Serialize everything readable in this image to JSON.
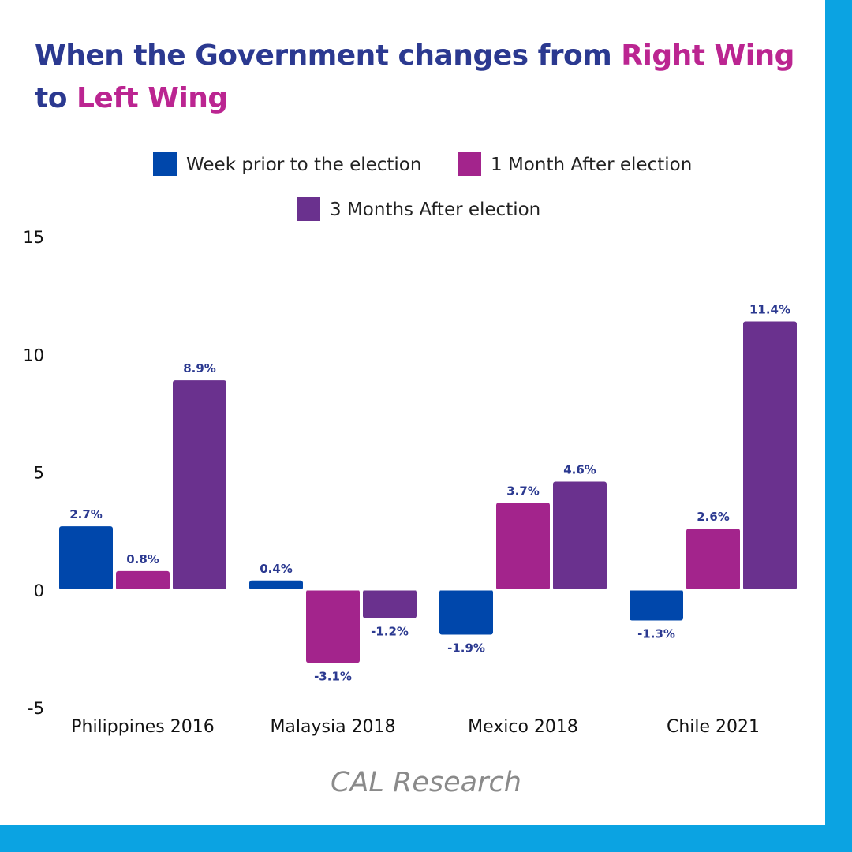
{
  "title": {
    "part1": "When the Government changes from ",
    "part2": "Right Wing",
    "part3": "to ",
    "part4": "Left Wing"
  },
  "source": "CAL Research",
  "colors": {
    "navy": "#2b3990",
    "magenta": "#bb2591",
    "border": "#0ba3e2"
  },
  "chart_data": {
    "type": "bar",
    "categories": [
      "Philippines 2016",
      "Malaysia 2018",
      "Mexico 2018",
      "Chile 2021"
    ],
    "series": [
      {
        "name": "Week prior to the election",
        "color": "#0047ab",
        "values": [
          2.7,
          0.4,
          -1.9,
          -1.3
        ],
        "labels": [
          "2.7%",
          "0.4%",
          "-1.9%",
          "-1.3%"
        ]
      },
      {
        "name": "1 Month After election",
        "color": "#a3248c",
        "values": [
          0.8,
          -3.1,
          3.7,
          2.6
        ],
        "labels": [
          "0.8%",
          "-3.1%",
          "3.7%",
          "2.6%"
        ]
      },
      {
        "name": "3 Months After election",
        "color": "#6a318e",
        "values": [
          8.9,
          -1.2,
          4.6,
          11.4
        ],
        "labels": [
          "8.9%",
          "-1.2%",
          "4.6%",
          "11.4%"
        ]
      }
    ],
    "yticks": [
      "15",
      "10",
      "5",
      "0",
      "-5"
    ],
    "ylim": [
      -5,
      15
    ],
    "grid": false,
    "legend_position": "top"
  }
}
